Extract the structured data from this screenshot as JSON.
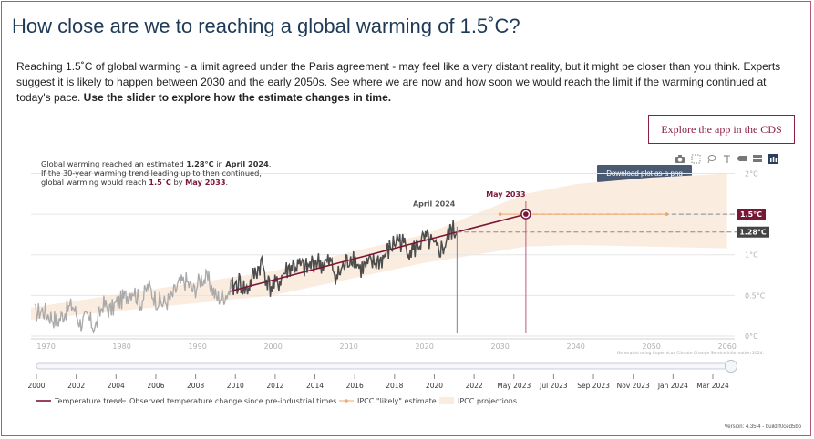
{
  "page": {
    "title": "How close are we to reaching a global warming of 1.5˚C?",
    "intro_text": "Reaching 1.5˚C of global warming - a limit agreed under the Paris agreement - may feel like a very distant reality, but it might be closer than you think. Experts suggest it is likely to happen between 2030 and the early 2050s. See where we are now and how soon we would reach the limit if the warming continued at today's pace. ",
    "intro_bold": "Use the slider to explore how the estimate changes in time.",
    "cds_button": "Explore the app in the CDS",
    "tooltip": "Download plot as a png",
    "version": "Version: 4.35.4 - build f0ced5bb"
  },
  "toolbar": {
    "icons": [
      "camera-icon",
      "select-box-icon",
      "lasso-icon",
      "reset-axes-icon",
      "hover-closest-icon",
      "hover-compare-icon",
      "plotly-logo-icon"
    ]
  },
  "annotation": {
    "line1_pre": "Global warming reached an estimated ",
    "line1_value": "1.28°C",
    "line1_mid": " in ",
    "line1_date": "April 2024",
    "line1_post": ".",
    "line2": "If the 30-year warming trend leading up to then continued,",
    "line3_pre": "global warming would reach ",
    "line3_value": "1.5˚C",
    "line3_mid": " by ",
    "line3_date": "May 2033",
    "line3_post": "."
  },
  "chart_data": {
    "type": "line",
    "x_ticks": [
      "1970",
      "1980",
      "1990",
      "2000",
      "2010",
      "2020",
      "2030",
      "2040",
      "2050",
      "2060"
    ],
    "y_ticks": [
      "0°C",
      "0.5°C",
      "1°C",
      "1.5°C",
      "2°C"
    ],
    "xlim": [
      1968,
      2061
    ],
    "ylim": [
      0,
      2.05
    ],
    "grid": true,
    "marker_labels": {
      "now": "April 2024",
      "target": "May 2033"
    },
    "value_badges": {
      "target": "1.5°C",
      "now": "1.28°C"
    },
    "credit": "Generated using Copernicus Climate Change Service information 2024.",
    "colors": {
      "trend": "#7a1737",
      "observed_light": "#a9a9a9",
      "observed_dark": "#4d4d4d",
      "ipcc_likely": "#f0a868",
      "ipcc_band": "#fbece0",
      "now_line": "#7a7fa6",
      "target_line": "#c05a78"
    },
    "temperature_trend": {
      "x": [
        1994.3,
        2024.3,
        2033.4
      ],
      "y": [
        0.55,
        1.28,
        1.5
      ]
    },
    "ipcc_likely": {
      "x": [
        2030,
        2052
      ],
      "y": [
        1.5,
        1.5
      ]
    },
    "ipcc_projections": {
      "x": [
        1968,
        2000,
        2020,
        2033.4,
        2040,
        2050,
        2060
      ],
      "low": [
        0.2,
        0.5,
        0.9,
        1.1,
        1.12,
        1.1,
        1.08
      ],
      "high": [
        0.35,
        0.8,
        1.25,
        1.75,
        1.87,
        1.95,
        2.0
      ]
    },
    "observed_light": {
      "x": [
        1968.5,
        1969.5,
        1970.5,
        1971.5,
        1972.5,
        1973.5,
        1974.5,
        1975.5,
        1976.5,
        1977.5,
        1978.5,
        1979.5,
        1980.5,
        1981.5,
        1982.5,
        1983.5,
        1984.5,
        1985.5,
        1986.5,
        1987.5,
        1988.5,
        1989.5,
        1990.5,
        1991.5,
        1992.5,
        1993.5,
        1994.5
      ],
      "y": [
        0.28,
        0.32,
        0.25,
        0.18,
        0.3,
        0.38,
        0.16,
        0.22,
        0.1,
        0.4,
        0.31,
        0.42,
        0.48,
        0.58,
        0.4,
        0.62,
        0.45,
        0.4,
        0.46,
        0.63,
        0.68,
        0.55,
        0.72,
        0.68,
        0.47,
        0.5,
        0.58
      ]
    },
    "observed_dark": {
      "x": [
        1994.5,
        1995.5,
        1996.5,
        1997.5,
        1998.5,
        1999.5,
        2000.5,
        2001.5,
        2002.5,
        2003.5,
        2004.5,
        2005.5,
        2006.5,
        2007.5,
        2008.5,
        2009.5,
        2010.5,
        2011.5,
        2012.5,
        2013.5,
        2014.5,
        2015.5,
        2016.5,
        2017.5,
        2018.5,
        2019.5,
        2020.5,
        2021.5,
        2022.5,
        2023.5,
        2024.3
      ],
      "y": [
        0.58,
        0.66,
        0.55,
        0.75,
        0.9,
        0.6,
        0.62,
        0.78,
        0.86,
        0.85,
        0.82,
        0.93,
        0.88,
        0.9,
        0.73,
        0.88,
        1.0,
        0.82,
        0.86,
        0.9,
        0.95,
        1.08,
        1.2,
        1.1,
        1.05,
        1.15,
        1.18,
        1.05,
        1.08,
        1.3,
        1.28
      ]
    }
  },
  "slider": {
    "ticks": [
      "2000",
      "2002",
      "2004",
      "2006",
      "2008",
      "2010",
      "2012",
      "2014",
      "2016",
      "2018",
      "2020",
      "2022",
      "May 2023",
      "Jul 2023",
      "Sep 2023",
      "Nov 2023",
      "Jan 2024",
      "Mar 2024"
    ],
    "position": 1.0
  },
  "legend": [
    {
      "label": "Temperature trend",
      "kind": "trend"
    },
    {
      "label": "Observed temperature change since pre-industrial times",
      "kind": "observed_light"
    },
    {
      "label": "IPCC \"likely\" estimate",
      "kind": "ipcc_likely"
    },
    {
      "label": "IPCC projections",
      "kind": "ipcc_band"
    }
  ]
}
